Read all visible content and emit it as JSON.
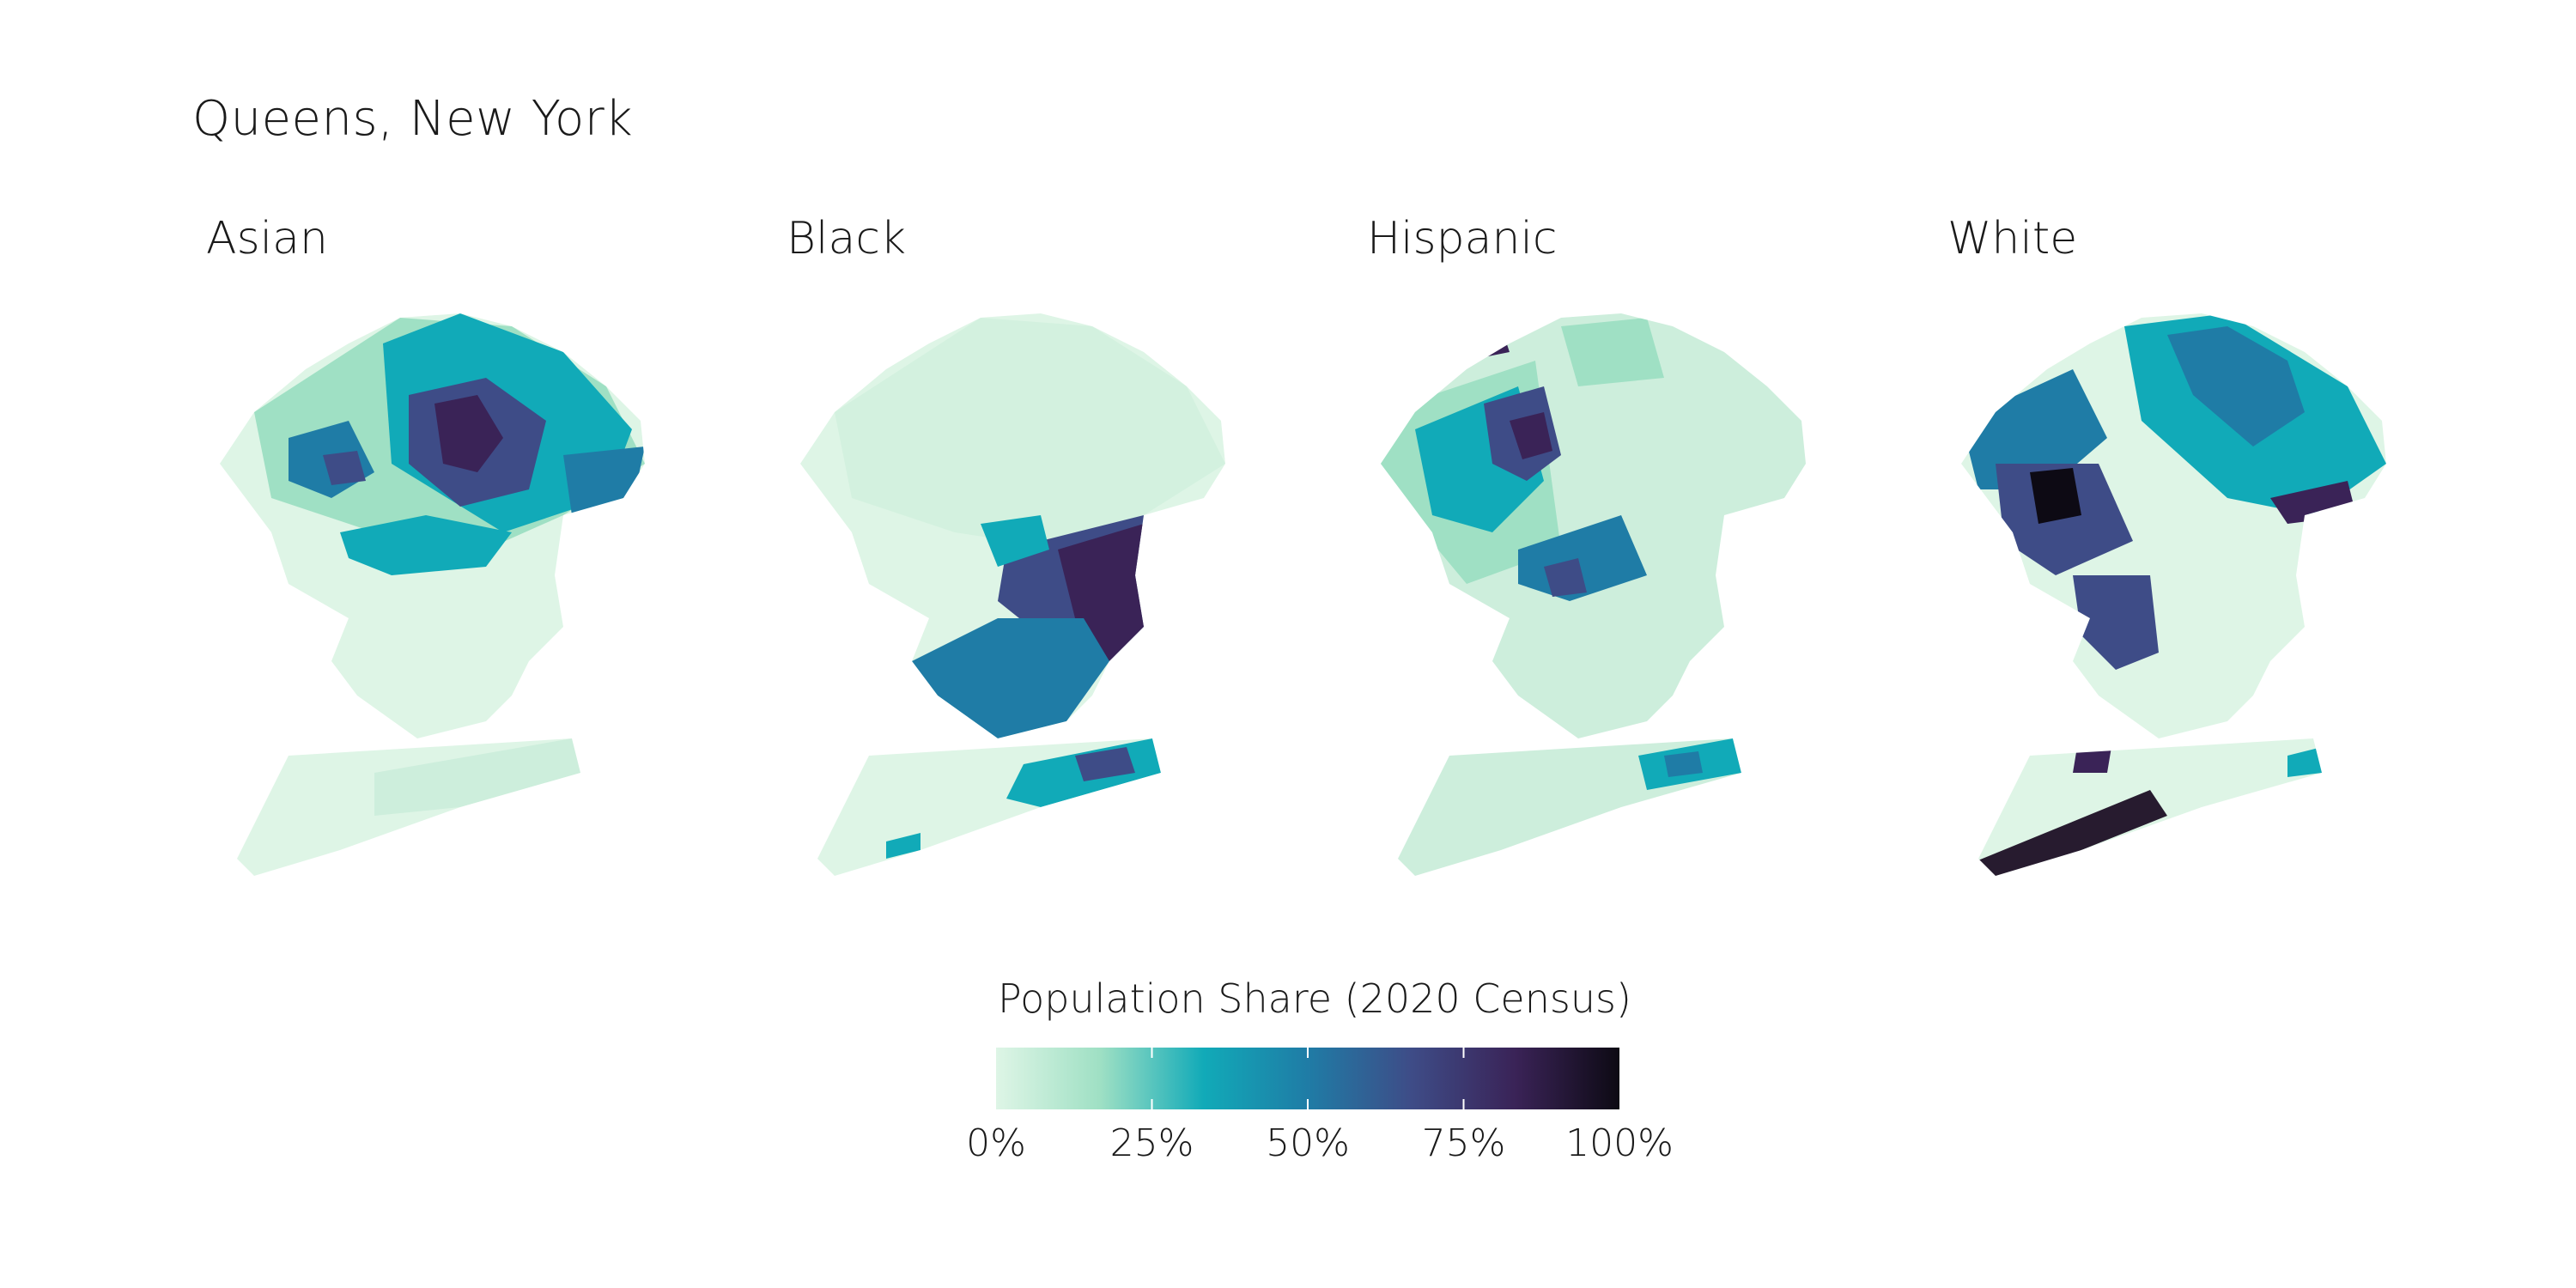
{
  "page": {
    "title": "Queens, New York"
  },
  "panels": [
    {
      "id": "asian",
      "label": "Asian"
    },
    {
      "id": "black",
      "label": "Black"
    },
    {
      "id": "hispanic",
      "label": "Hispanic"
    },
    {
      "id": "white",
      "label": "White"
    }
  ],
  "legend": {
    "title": "Population Share (2020 Census)",
    "ticks": [
      "0%",
      "25%",
      "50%",
      "75%",
      "100%"
    ],
    "tick_values": [
      0,
      0.25,
      0.5,
      0.75,
      1.0
    ],
    "color_stops": [
      "#def5e6",
      "#9fe0c4",
      "#11aab8",
      "#1f7ca6",
      "#3e4c87",
      "#3a2357",
      "#0d0a14"
    ]
  },
  "colors": {
    "background": "#ffffff",
    "text": "#1a1a1a",
    "missing": "#f7f7f7"
  }
}
